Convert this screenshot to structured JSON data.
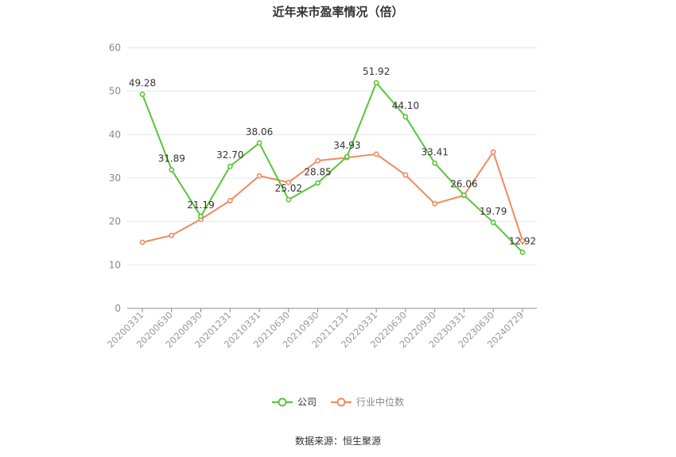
{
  "chart_data": {
    "type": "line",
    "title": "近年来市盈率情况（倍）",
    "categories": [
      "20200331",
      "20200630",
      "20200930",
      "20201231",
      "20210331",
      "20210630",
      "20210930",
      "20211231",
      "20220331",
      "20220630",
      "20220930",
      "20230331",
      "20230630",
      "20240729"
    ],
    "series": [
      {
        "name": "公司",
        "color": "#5ac43a",
        "show_labels": true,
        "values": [
          49.28,
          31.89,
          21.19,
          32.7,
          38.06,
          25.02,
          28.85,
          34.93,
          51.92,
          44.1,
          33.41,
          26.06,
          19.79,
          12.92
        ],
        "labels": [
          "49.28",
          "31.89",
          "21.19",
          "32.70",
          "38.06",
          "25.02",
          "28.85",
          "34.93",
          "51.92",
          "44.10",
          "33.41",
          "26.06",
          "19.79",
          "12.92"
        ]
      },
      {
        "name": "行业中位数",
        "color": "#f08a5d",
        "show_labels": false,
        "values": [
          15.2,
          16.8,
          20.5,
          24.8,
          30.5,
          29.0,
          34.0,
          34.7,
          35.5,
          30.7,
          24.1,
          26.0,
          36.0,
          15.6
        ]
      }
    ],
    "ylim": [
      0,
      60
    ],
    "yticks": [
      0,
      10,
      20,
      30,
      40,
      50,
      60
    ],
    "grid": true,
    "legend_position": "bottom-center"
  },
  "footer": {
    "source": "数据来源：恒生聚源"
  }
}
